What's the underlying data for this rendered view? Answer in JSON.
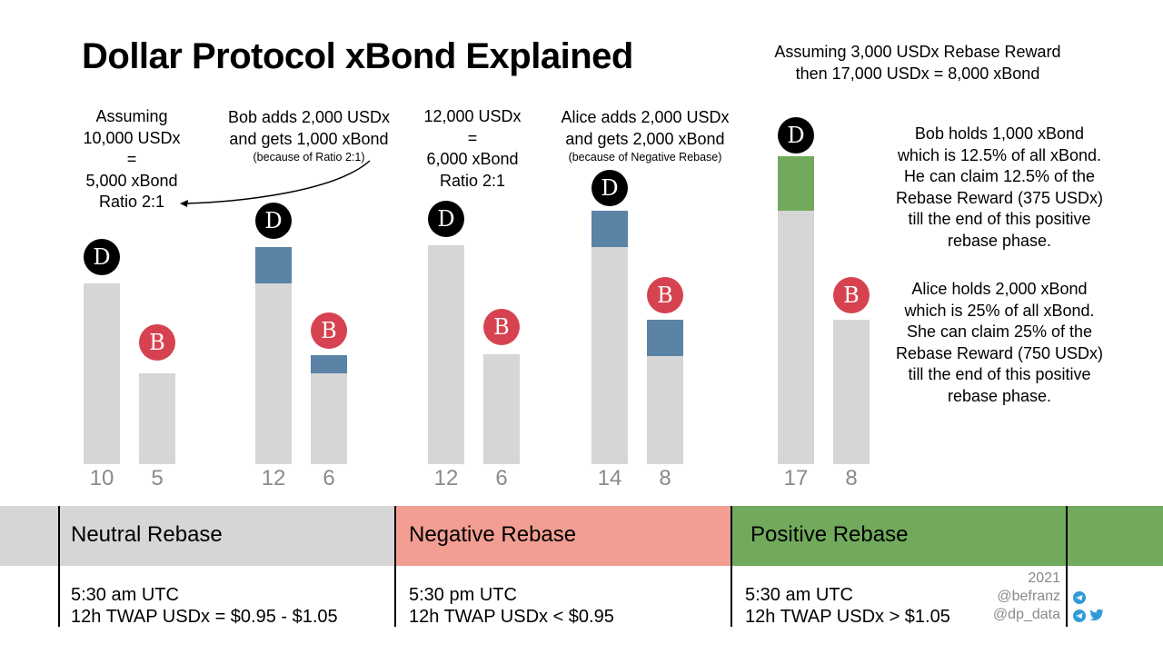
{
  "title": "Dollar Protocol xBond Explained",
  "top_right": {
    "line1": "Assuming 3,000 USDx Rebase Reward",
    "line2": "then 17,000 USDx = 8,000 xBond"
  },
  "notes": {
    "n1": [
      "Assuming",
      "10,000 USDx",
      "=",
      "5,000 xBond",
      "Ratio 2:1"
    ],
    "n2": [
      "Bob adds 2,000 USDx",
      "and gets 1,000 xBond"
    ],
    "n2_small": "(because of Ratio 2:1)",
    "n3": [
      "12,000 USDx",
      "=",
      "6,000 xBond",
      "Ratio 2:1"
    ],
    "n4": [
      "Alice adds 2,000 USDx",
      "and gets 2,000 xBond"
    ],
    "n4_small": "(because of Negative Rebase)",
    "bob": [
      "Bob holds 1,000 xBond",
      "which is 12.5% of all xBond.",
      "He can claim 12.5% of the",
      "Rebase Reward (375 USDx)",
      "till the end of this positive",
      "rebase phase."
    ],
    "alice": [
      "Alice holds 2,000 xBond",
      "which is 25% of all xBond.",
      "She can claim 25% of the",
      "Rebase Reward (750 USDx)",
      "till the end of this positive",
      "rebase phase."
    ]
  },
  "badges": {
    "d": "D",
    "b": "B"
  },
  "bars": {
    "g1": {
      "usdx": 10,
      "xbond": 5
    },
    "g2": {
      "usdx": 12,
      "xbond": 6
    },
    "g3": {
      "usdx": 12,
      "xbond": 6
    },
    "g4": {
      "usdx": 14,
      "xbond": 8
    },
    "g5": {
      "usdx": 17,
      "xbond": 8
    }
  },
  "phases": {
    "neutral": {
      "label": "Neutral Rebase",
      "time": "5:30 am UTC",
      "cond": "12h TWAP USDx = $0.95 - $1.05",
      "color": "#d6d6d6"
    },
    "negative": {
      "label": "Negative Rebase",
      "time": "5:30 pm UTC",
      "cond": "12h TWAP USDx < $0.95",
      "color": "#f29e92"
    },
    "positive": {
      "label": "Positive Rebase",
      "time": "5:30 am UTC",
      "cond": "12h TWAP USDx > $1.05",
      "color": "#71aa5c"
    }
  },
  "credit": {
    "year": "2021",
    "handle1": "@befranz",
    "handle2": "@dp_data"
  },
  "icons": {
    "telegram": "telegram-icon",
    "twitter": "twitter-icon"
  }
}
